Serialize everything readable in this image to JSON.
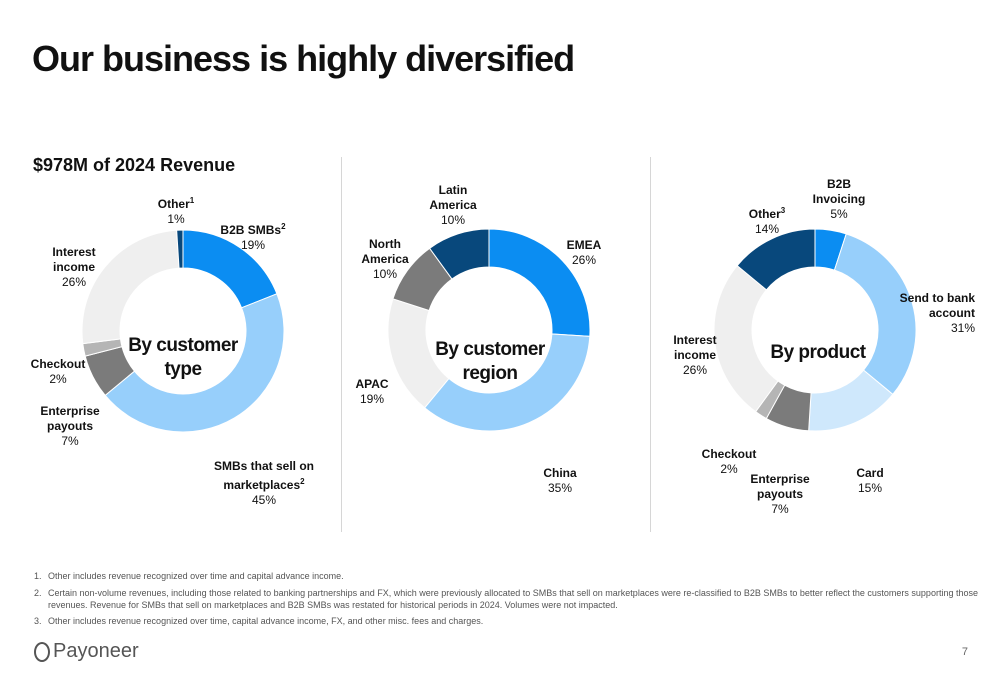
{
  "title": "Our business is highly diversified",
  "subtitle": "$978M of 2024 Revenue",
  "chart_data": [
    {
      "type": "pie",
      "center_label": "By customer type",
      "slices": [
        {
          "label": "B2B SMBs",
          "sup": "2",
          "value": 19,
          "pct": "19%",
          "color": "#0b8df2"
        },
        {
          "label": "SMBs that sell on marketplaces",
          "sup": "2",
          "value": 45,
          "pct": "45%",
          "color": "#97cffb"
        },
        {
          "label": "Enterprise payouts",
          "sup": "",
          "value": 7,
          "pct": "7%",
          "color": "#7b7b7b"
        },
        {
          "label": "Checkout",
          "sup": "",
          "value": 2,
          "pct": "2%",
          "color": "#b5b5b5"
        },
        {
          "label": "Interest income",
          "sup": "",
          "value": 26,
          "pct": "26%",
          "color": "#efefef"
        },
        {
          "label": "Other",
          "sup": "1",
          "value": 1,
          "pct": "1%",
          "color": "#08487c"
        }
      ]
    },
    {
      "type": "pie",
      "center_label": "By customer region",
      "slices": [
        {
          "label": "EMEA",
          "sup": "",
          "value": 26,
          "pct": "26%",
          "color": "#0b8df2"
        },
        {
          "label": "China",
          "sup": "",
          "value": 35,
          "pct": "35%",
          "color": "#97cffb"
        },
        {
          "label": "APAC",
          "sup": "",
          "value": 19,
          "pct": "19%",
          "color": "#efefef"
        },
        {
          "label": "North America",
          "sup": "",
          "value": 10,
          "pct": "10%",
          "color": "#7b7b7b"
        },
        {
          "label": "Latin America",
          "sup": "",
          "value": 10,
          "pct": "10%",
          "color": "#08487c"
        }
      ]
    },
    {
      "type": "pie",
      "center_label": "By product",
      "slices": [
        {
          "label": "B2B Invoicing",
          "sup": "",
          "value": 5,
          "pct": "5%",
          "color": "#0b8df2"
        },
        {
          "label": "Send to bank account",
          "sup": "",
          "value": 31,
          "pct": "31%",
          "color": "#97cffb"
        },
        {
          "label": "Card",
          "sup": "",
          "value": 15,
          "pct": "15%",
          "color": "#cfe8fc"
        },
        {
          "label": "Enterprise payouts",
          "sup": "",
          "value": 7,
          "pct": "7%",
          "color": "#7b7b7b"
        },
        {
          "label": "Checkout",
          "sup": "",
          "value": 2,
          "pct": "2%",
          "color": "#b5b5b5"
        },
        {
          "label": "Interest income",
          "sup": "",
          "value": 26,
          "pct": "26%",
          "color": "#efefef"
        },
        {
          "label": "Other",
          "sup": "3",
          "value": 14,
          "pct": "14%",
          "color": "#08487c"
        }
      ]
    }
  ],
  "footnotes": [
    {
      "num": "1.",
      "text": "Other includes revenue recognized over time and capital advance income."
    },
    {
      "num": "2.",
      "text": "Certain non-volume revenues, including those related to banking partnerships and FX, which were previously allocated to SMBs that sell on marketplaces were re-classified to B2B SMBs to better reflect the customers supporting those revenues. Revenue for SMBs that sell on marketplaces and B2B SMBs was restated for historical periods in 2024. Volumes were not impacted."
    },
    {
      "num": "3.",
      "text": "Other includes revenue recognized over time, capital advance income, FX, and other misc. fees and charges."
    }
  ],
  "logo_text": "Payoneer",
  "page_number": "7"
}
